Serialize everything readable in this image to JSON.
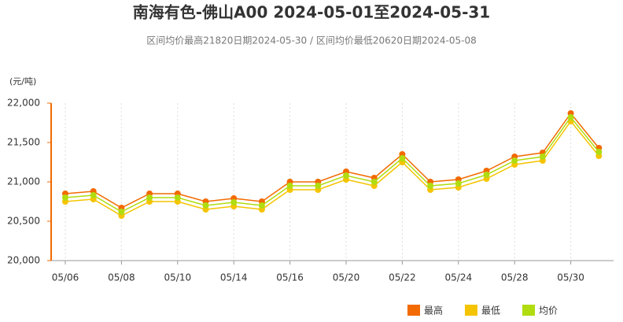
{
  "chart_data": {
    "type": "line",
    "title": "南海有色-佛山A00 2024-05-01至2024-05-31",
    "subtitle": "区间均价最高21820日期2024-05-30 / 区间均价最低20620日期2024-05-08",
    "y_unit": "(元/吨)",
    "categories": [
      "05/06",
      null,
      "05/08",
      null,
      "05/10",
      null,
      "05/14",
      null,
      "05/16",
      null,
      "05/20",
      null,
      "05/22",
      null,
      "05/24",
      null,
      "05/28",
      null,
      "05/30",
      null
    ],
    "series": [
      {
        "name": "最高",
        "color": "#f26a00",
        "values": [
          20850,
          20880,
          20670,
          20850,
          20850,
          20750,
          20790,
          20750,
          21000,
          21000,
          21130,
          21050,
          21350,
          21000,
          21030,
          21140,
          21320,
          21370,
          21870,
          21430
        ]
      },
      {
        "name": "最低",
        "color": "#f5c400",
        "values": [
          20750,
          20780,
          20570,
          20750,
          20750,
          20650,
          20690,
          20650,
          20900,
          20900,
          21030,
          20950,
          21250,
          20900,
          20930,
          21040,
          21220,
          21270,
          21770,
          21330
        ]
      },
      {
        "name": "均价",
        "color": "#b0dc10",
        "values": [
          20800,
          20830,
          20620,
          20800,
          20800,
          20700,
          20740,
          20700,
          20950,
          20950,
          21080,
          21000,
          21300,
          20950,
          20980,
          21090,
          21270,
          21320,
          21820,
          21380
        ]
      }
    ],
    "ylim": [
      20000,
      22000
    ],
    "yticks": [
      {
        "value": 20000,
        "label": "20,000"
      },
      {
        "value": 20500,
        "label": "20,500"
      },
      {
        "value": 21000,
        "label": "21,000"
      },
      {
        "value": 21500,
        "label": "21,500"
      },
      {
        "value": 22000,
        "label": "22,000"
      }
    ],
    "grid": true
  }
}
